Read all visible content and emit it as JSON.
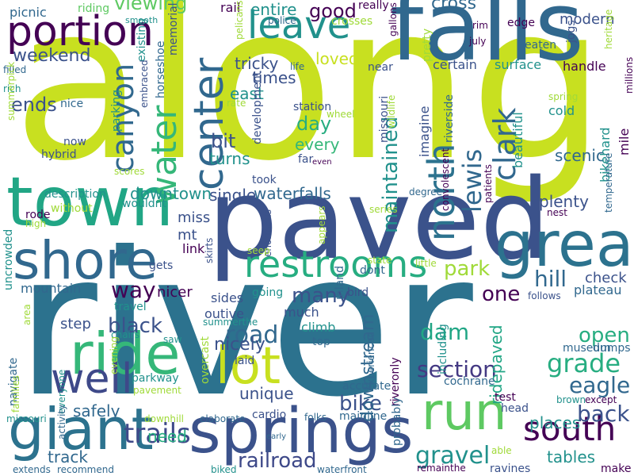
{
  "wordcloud": {
    "palette": {
      "purple": "#440154",
      "indigo": "#3b528b",
      "blue": "#31688e",
      "teal": "#21918c",
      "green": "#27ad81",
      "lime": "#5ec962",
      "yellow": "#c8e020",
      "pale": "#a0da39"
    },
    "words": [
      {
        "text": "along",
        "color": "#c8e020"
      },
      {
        "text": "river",
        "color": "#2c728e"
      },
      {
        "text": "paved",
        "color": "#3b528b"
      },
      {
        "text": "falls",
        "color": "#31688e"
      },
      {
        "text": "town",
        "color": "#21a685"
      },
      {
        "text": "springs",
        "color": "#3b528b"
      },
      {
        "text": "giant",
        "color": "#2c728e"
      },
      {
        "text": "ride",
        "color": "#35b779"
      },
      {
        "text": "shore",
        "color": "#31688e"
      },
      {
        "text": "great",
        "color": "#2c728e"
      },
      {
        "text": "run",
        "color": "#5ec962"
      },
      {
        "text": "portion",
        "color": "#440154"
      },
      {
        "text": "leave",
        "color": "#21918c"
      },
      {
        "text": "restrooms",
        "color": "#27ad81"
      },
      {
        "text": "well",
        "color": "#3e4989"
      },
      {
        "text": "lot",
        "color": "#c8e020"
      },
      {
        "text": "south",
        "color": "#440154"
      },
      {
        "text": "center",
        "color": "#31688e"
      },
      {
        "text": "water",
        "color": "#35b779"
      },
      {
        "text": "canyon",
        "color": "#31688e"
      },
      {
        "text": "north",
        "color": "#2c728e"
      },
      {
        "text": "maintained",
        "color": "#21918c"
      },
      {
        "text": "lewis",
        "color": "#31688e"
      },
      {
        "text": "clark",
        "color": "#31688e"
      },
      {
        "text": "trails",
        "color": "#3e4989"
      },
      {
        "text": "railroad",
        "color": "#3e4989"
      },
      {
        "text": "gravel",
        "color": "#21918c"
      },
      {
        "text": "section",
        "color": "#443983"
      },
      {
        "text": "grade",
        "color": "#27ad81"
      },
      {
        "text": "eagle",
        "color": "#31688e"
      },
      {
        "text": "back",
        "color": "#3b528b"
      },
      {
        "text": "bike",
        "color": "#3b528b"
      },
      {
        "text": "dam",
        "color": "#21a685"
      },
      {
        "text": "road",
        "color": "#31688e"
      },
      {
        "text": "viewing",
        "color": "#5ec962"
      },
      {
        "text": "weekend",
        "color": "#3b528b"
      },
      {
        "text": "ends",
        "color": "#3b528b"
      },
      {
        "text": "bit",
        "color": "#3b528b"
      },
      {
        "text": "day",
        "color": "#27ad81"
      },
      {
        "text": "good",
        "color": "#440154"
      },
      {
        "text": "cross",
        "color": "#31688e"
      },
      {
        "text": "hill",
        "color": "#31688e"
      },
      {
        "text": "park",
        "color": "#a0da39"
      },
      {
        "text": "way",
        "color": "#440154"
      },
      {
        "text": "black",
        "color": "#3b528b"
      },
      {
        "text": "many",
        "color": "#3b528b"
      },
      {
        "text": "one",
        "color": "#440154"
      },
      {
        "text": "open",
        "color": "#27ad81"
      },
      {
        "text": "nicely",
        "color": "#3b528b"
      },
      {
        "text": "downstream",
        "color": "#31688e"
      },
      {
        "text": "ridepaved",
        "color": "#21a685"
      },
      {
        "text": "places",
        "color": "#21918c"
      },
      {
        "text": "tables",
        "color": "#21918c"
      },
      {
        "text": "track",
        "color": "#31688e"
      },
      {
        "text": "need",
        "color": "#27ad81"
      },
      {
        "text": "safely",
        "color": "#31688e"
      },
      {
        "text": "unique",
        "color": "#3b528b"
      },
      {
        "text": "times",
        "color": "#3b528b"
      },
      {
        "text": "tricky",
        "color": "#3b528b"
      },
      {
        "text": "loved",
        "color": "#c8e020"
      },
      {
        "text": "east",
        "color": "#21918c"
      },
      {
        "text": "turns",
        "color": "#21918c"
      },
      {
        "text": "entire",
        "color": "#21918c"
      },
      {
        "text": "every",
        "color": "#35b779"
      },
      {
        "text": "waterfalls",
        "color": "#31688e"
      },
      {
        "text": "single",
        "color": "#3b528b"
      },
      {
        "text": "downtown",
        "color": "#21918c"
      },
      {
        "text": "plenty",
        "color": "#3b528b"
      },
      {
        "text": "scenic",
        "color": "#31688e"
      },
      {
        "text": "beautiful",
        "color": "#21918c"
      },
      {
        "text": "bikehard",
        "color": "#21918c"
      },
      {
        "text": "mile",
        "color": "#440154"
      },
      {
        "text": "modern",
        "color": "#3b528b"
      },
      {
        "text": "check",
        "color": "#3b528b"
      },
      {
        "text": "plateau",
        "color": "#31688e"
      },
      {
        "text": "museum",
        "color": "#31688e"
      },
      {
        "text": "dumps",
        "color": "#31688e"
      },
      {
        "text": "surface",
        "color": "#21918c"
      },
      {
        "text": "handle",
        "color": "#440154"
      },
      {
        "text": "cold",
        "color": "#21918c"
      },
      {
        "text": "certain",
        "color": "#3b528b"
      },
      {
        "text": "eaten",
        "color": "#31688e"
      },
      {
        "text": "edge",
        "color": "#440154"
      },
      {
        "text": "rim",
        "color": "#440154"
      },
      {
        "text": "july",
        "color": "#440154"
      },
      {
        "text": "jogs",
        "color": "#3b528b"
      },
      {
        "text": "rail",
        "color": "#440154"
      },
      {
        "text": "crosses",
        "color": "#a0da39"
      },
      {
        "text": "police",
        "color": "#31688e"
      },
      {
        "text": "really",
        "color": "#440154"
      },
      {
        "text": "picnic",
        "color": "#31688e"
      },
      {
        "text": "riding",
        "color": "#5ec962"
      },
      {
        "text": "smooth",
        "color": "#21918c"
      },
      {
        "text": "pelicans",
        "color": "#a0da39"
      },
      {
        "text": "gallons",
        "color": "#440154"
      },
      {
        "text": "pretty",
        "color": "#a0da39"
      },
      {
        "text": "near",
        "color": "#3b528b"
      },
      {
        "text": "life",
        "color": "#31688e"
      },
      {
        "text": "station",
        "color": "#3b528b"
      },
      {
        "text": "wheel",
        "color": "#a0da39"
      },
      {
        "text": "far",
        "color": "#3b528b"
      },
      {
        "text": "even",
        "color": "#440154"
      },
      {
        "text": "took",
        "color": "#3b528b"
      },
      {
        "text": "development",
        "color": "#3b528b"
      },
      {
        "text": "imagine",
        "color": "#3b528b"
      },
      {
        "text": "riverside",
        "color": "#31688e"
      },
      {
        "text": "missouri",
        "color": "#3b528b"
      },
      {
        "text": "wildlife",
        "color": "#a0da39"
      },
      {
        "text": "degree",
        "color": "#31688e"
      },
      {
        "text": "series",
        "color": "#a0da39"
      },
      {
        "text": "convolescent",
        "color": "#440154"
      },
      {
        "text": "patients",
        "color": "#440154"
      },
      {
        "text": "nest",
        "color": "#440154"
      },
      {
        "text": "temperature",
        "color": "#31688e"
      },
      {
        "text": "millions",
        "color": "#440154"
      },
      {
        "text": "heritage",
        "color": "#a0da39"
      },
      {
        "text": "spring",
        "color": "#a0da39"
      },
      {
        "text": "filled",
        "color": "#31688e"
      },
      {
        "text": "rich",
        "color": "#21918c"
      },
      {
        "text": "nice",
        "color": "#31688e"
      },
      {
        "text": "now",
        "color": "#3b528b"
      },
      {
        "text": "hybrid",
        "color": "#3b528b"
      },
      {
        "text": "summerpick",
        "color": "#a0da39"
      },
      {
        "text": "existing",
        "color": "#21918c"
      },
      {
        "text": "embraced",
        "color": "#3b528b"
      },
      {
        "text": "memorial",
        "color": "#3b528b"
      },
      {
        "text": "horseshoe",
        "color": "#31688e"
      },
      {
        "text": "parking",
        "color": "#21918c"
      },
      {
        "text": "rate",
        "color": "#a0da39"
      },
      {
        "text": "scores",
        "color": "#a0da39"
      },
      {
        "text": "description",
        "color": "#21918c"
      },
      {
        "text": "without",
        "color": "#a0da39"
      },
      {
        "text": "wouldnt",
        "color": "#21918c"
      },
      {
        "text": "rode",
        "color": "#440154"
      },
      {
        "text": "high",
        "color": "#a0da39"
      },
      {
        "text": "mt",
        "color": "#3b528b"
      },
      {
        "text": "miss",
        "color": "#3b528b"
      },
      {
        "text": "link",
        "color": "#440154"
      },
      {
        "text": "gets",
        "color": "#3b528b"
      },
      {
        "text": "mountain",
        "color": "#31688e"
      },
      {
        "text": "uncrowded",
        "color": "#21918c"
      },
      {
        "text": "nicer",
        "color": "#440154"
      },
      {
        "text": "travel",
        "color": "#21918c"
      },
      {
        "text": "sides",
        "color": "#3b528b"
      },
      {
        "text": "outive",
        "color": "#3b528b"
      },
      {
        "text": "summerthe",
        "color": "#21918c"
      },
      {
        "text": "much",
        "color": "#3b528b"
      },
      {
        "text": "climb",
        "color": "#21918c"
      },
      {
        "text": "going",
        "color": "#21918c"
      },
      {
        "text": "enormous",
        "color": "#3b528b"
      },
      {
        "text": "seep",
        "color": "#a0da39"
      },
      {
        "text": "skirts",
        "color": "#3b528b"
      },
      {
        "text": "bird",
        "color": "#3b528b"
      },
      {
        "text": "inland",
        "color": "#31688e"
      },
      {
        "text": "dont",
        "color": "#31688e"
      },
      {
        "text": "state",
        "color": "#a0da39"
      },
      {
        "text": "little",
        "color": "#a0da39"
      },
      {
        "text": "appears",
        "color": "#a0da39"
      },
      {
        "text": "step",
        "color": "#3b528b"
      },
      {
        "text": "navigate",
        "color": "#31688e"
      },
      {
        "text": "saw",
        "color": "#21918c"
      },
      {
        "text": "chairs",
        "color": "#21918c"
      },
      {
        "text": "evening",
        "color": "#a0da39"
      },
      {
        "text": "area",
        "color": "#a0da39"
      },
      {
        "text": "everyone",
        "color": "#21918c"
      },
      {
        "text": "families",
        "color": "#a0da39"
      },
      {
        "text": "activity",
        "color": "#31688e"
      },
      {
        "text": "parkway",
        "color": "#21918c"
      },
      {
        "text": "pavement",
        "color": "#a0da39"
      },
      {
        "text": "overcast",
        "color": "#a0da39"
      },
      {
        "text": "laid",
        "color": "#3b528b"
      },
      {
        "text": "top",
        "color": "#31688e"
      },
      {
        "text": "accurate",
        "color": "#31688e"
      },
      {
        "text": "experienced",
        "color": "#31688e"
      },
      {
        "text": "including",
        "color": "#21918c"
      },
      {
        "text": "cochrane",
        "color": "#31688e"
      },
      {
        "text": "riveronly",
        "color": "#440154"
      },
      {
        "text": "test",
        "color": "#440154"
      },
      {
        "text": "head",
        "color": "#3b528b"
      },
      {
        "text": "brown",
        "color": "#21918c"
      },
      {
        "text": "except",
        "color": "#440154"
      },
      {
        "text": "follows",
        "color": "#3b528b"
      },
      {
        "text": "missouri",
        "color": "#21918c"
      },
      {
        "text": "downhill",
        "color": "#a0da39"
      },
      {
        "text": "elaborate",
        "color": "#31688e"
      },
      {
        "text": "cardio",
        "color": "#3b528b"
      },
      {
        "text": "folks",
        "color": "#31688e"
      },
      {
        "text": "mainline",
        "color": "#31688e"
      },
      {
        "text": "early",
        "color": "#31688e"
      },
      {
        "text": "probably",
        "color": "#31688e"
      },
      {
        "text": "able",
        "color": "#a0da39"
      },
      {
        "text": "ravines",
        "color": "#3b528b"
      },
      {
        "text": "make",
        "color": "#440154"
      },
      {
        "text": "extends",
        "color": "#31688e"
      },
      {
        "text": "recommend",
        "color": "#31688e"
      },
      {
        "text": "biked",
        "color": "#21918c"
      },
      {
        "text": "waterfront",
        "color": "#31688e"
      },
      {
        "text": "remainthe",
        "color": "#440154"
      }
    ]
  }
}
